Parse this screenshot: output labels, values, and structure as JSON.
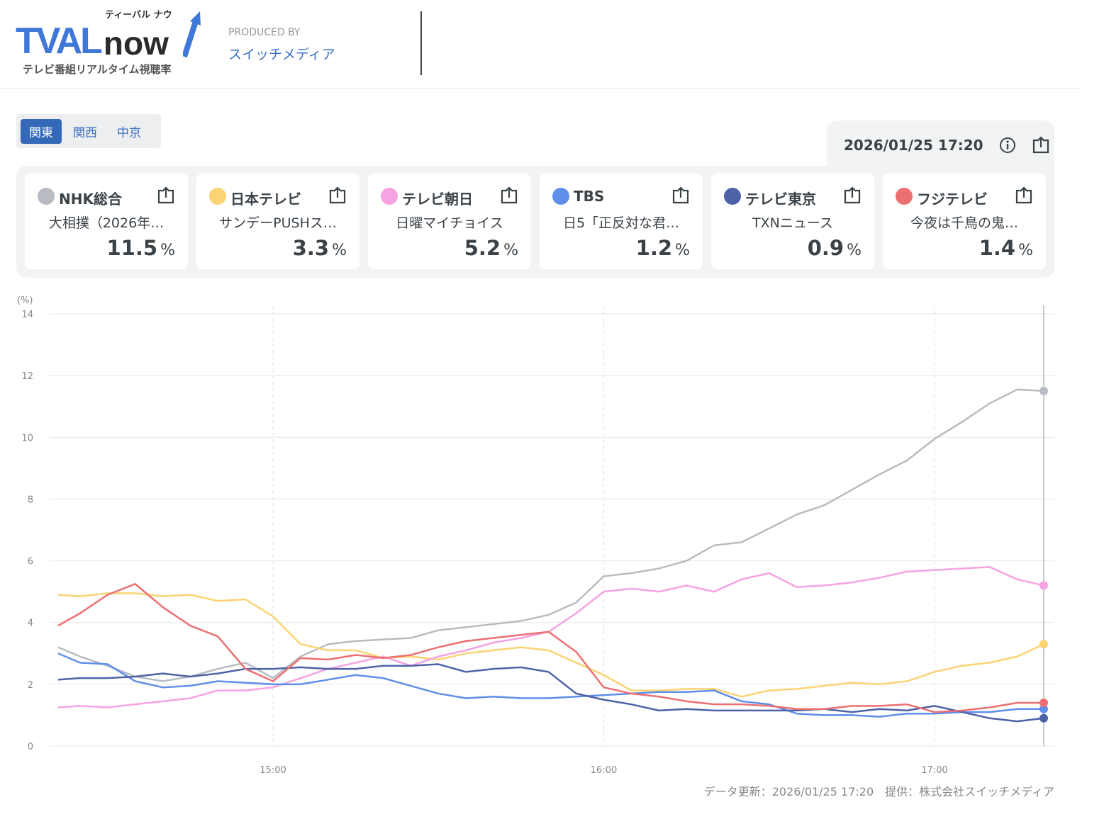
{
  "header": {
    "logo_text": "TVAL",
    "logo_now": "now",
    "logo_kana": "ティーバル ナウ",
    "logo_subtitle": "テレビ番組リアルタイム視聴率",
    "produced_by": "PRODUCED BY",
    "maker": "スイッチメディア"
  },
  "regions": [
    {
      "label": "関東",
      "active": true
    },
    {
      "label": "関西",
      "active": false
    },
    {
      "label": "中京",
      "active": false
    }
  ],
  "timestamp": "2026/01/25 17:20",
  "channels": [
    {
      "name": "NHK総合",
      "program": "大相撲（2026年…",
      "value": "11.5",
      "unit": "%",
      "color": "#b8bcc2"
    },
    {
      "name": "日本テレビ",
      "program": "サンデーPUSHス…",
      "value": "3.3",
      "unit": "%",
      "color": "#fcd372"
    },
    {
      "name": "テレビ朝日",
      "program": "日曜マイチョイス",
      "value": "5.2",
      "unit": "%",
      "color": "#f5a3e1"
    },
    {
      "name": "TBS",
      "program": "日5「正反対な君…",
      "value": "1.2",
      "unit": "%",
      "color": "#5f8fe8"
    },
    {
      "name": "テレビ東京",
      "program": "TXNニュース",
      "value": "0.9",
      "unit": "%",
      "color": "#4e62a8"
    },
    {
      "name": "フジテレビ",
      "program": "今夜は千鳥の鬼…",
      "value": "1.4",
      "unit": "%",
      "color": "#ec6f72"
    }
  ],
  "chart_data": {
    "type": "line",
    "ylabel": "(%)",
    "ylim": [
      0,
      14
    ],
    "yticks": [
      "0",
      "2",
      "4",
      "6",
      "8",
      "10",
      "12",
      "14"
    ],
    "xticks": [
      "15:00",
      "16:00",
      "17:00"
    ],
    "x_start": "14:20",
    "x_step_minutes": 5,
    "series": [
      {
        "name": "NHK総合",
        "color": "#b8bcc2",
        "values": [
          3.2,
          2.9,
          2.6,
          2.25,
          2.1,
          2.25,
          2.5,
          2.7,
          2.2,
          2.9,
          3.3,
          3.4,
          3.45,
          3.5,
          3.75,
          3.85,
          3.95,
          4.05,
          4.25,
          4.65,
          5.5,
          5.6,
          5.75,
          6.0,
          6.5,
          6.6,
          7.05,
          7.5,
          7.8,
          8.3,
          8.8,
          9.25,
          9.95,
          10.5,
          11.1,
          11.55,
          11.5
        ]
      },
      {
        "name": "日本テレビ",
        "color": "#fcd372",
        "values": [
          4.9,
          4.85,
          4.95,
          4.95,
          4.85,
          4.9,
          4.7,
          4.75,
          4.2,
          3.3,
          3.1,
          3.1,
          2.85,
          2.9,
          2.8,
          3.0,
          3.1,
          3.2,
          3.1,
          2.7,
          2.3,
          1.8,
          1.8,
          1.85,
          1.85,
          1.6,
          1.8,
          1.85,
          1.95,
          2.05,
          2.0,
          2.1,
          2.4,
          2.6,
          2.7,
          2.9,
          3.3
        ]
      },
      {
        "name": "テレビ朝日",
        "color": "#f5a3e1",
        "values": [
          1.25,
          1.3,
          1.25,
          1.35,
          1.45,
          1.55,
          1.8,
          1.8,
          1.9,
          2.2,
          2.5,
          2.7,
          2.9,
          2.6,
          2.9,
          3.1,
          3.35,
          3.5,
          3.7,
          4.3,
          5.0,
          5.1,
          5.0,
          5.2,
          5.0,
          5.4,
          5.6,
          5.15,
          5.2,
          5.3,
          5.45,
          5.65,
          5.7,
          5.75,
          5.8,
          5.4,
          5.2
        ]
      },
      {
        "name": "TBS",
        "color": "#5f8fe8",
        "values": [
          3.0,
          2.7,
          2.65,
          2.1,
          1.9,
          1.95,
          2.1,
          2.05,
          2.0,
          2.0,
          2.15,
          2.3,
          2.2,
          1.95,
          1.7,
          1.55,
          1.6,
          1.55,
          1.55,
          1.6,
          1.65,
          1.7,
          1.75,
          1.75,
          1.8,
          1.45,
          1.35,
          1.05,
          1.0,
          1.0,
          0.95,
          1.05,
          1.05,
          1.1,
          1.1,
          1.2,
          1.2
        ]
      },
      {
        "name": "テレビ東京",
        "color": "#4e62a8",
        "values": [
          2.15,
          2.2,
          2.2,
          2.25,
          2.35,
          2.25,
          2.35,
          2.5,
          2.5,
          2.55,
          2.5,
          2.5,
          2.6,
          2.6,
          2.65,
          2.4,
          2.5,
          2.55,
          2.4,
          1.7,
          1.5,
          1.35,
          1.15,
          1.2,
          1.15,
          1.15,
          1.15,
          1.15,
          1.2,
          1.1,
          1.2,
          1.15,
          1.3,
          1.1,
          0.9,
          0.8,
          0.9
        ]
      },
      {
        "name": "フジテレビ",
        "color": "#ec6f72",
        "values": [
          3.9,
          4.3,
          4.9,
          5.25,
          4.5,
          3.9,
          3.55,
          2.5,
          2.1,
          2.85,
          2.8,
          2.95,
          2.85,
          2.95,
          3.2,
          3.4,
          3.5,
          3.6,
          3.7,
          3.05,
          1.9,
          1.7,
          1.6,
          1.45,
          1.35,
          1.35,
          1.3,
          1.2,
          1.2,
          1.3,
          1.3,
          1.35,
          1.1,
          1.15,
          1.25,
          1.4,
          1.4
        ]
      }
    ]
  },
  "footer": "データ更新：2026/01/25 17:20　提供：株式会社スイッチメディア"
}
